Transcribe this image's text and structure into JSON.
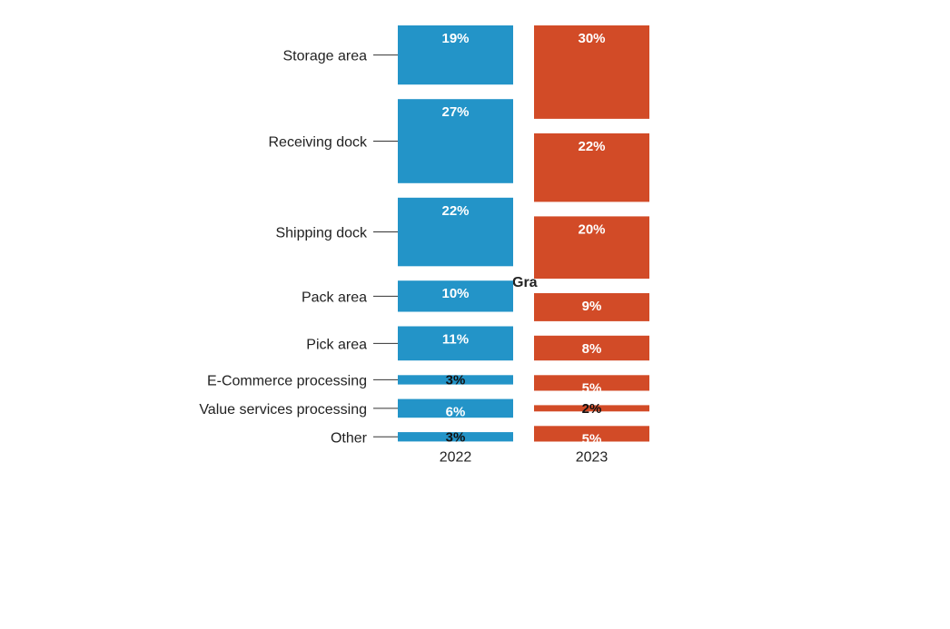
{
  "chart_data": {
    "type": "bar",
    "orientation": "stacked-column",
    "title": "",
    "xlabel": "",
    "ylabel": "",
    "grid": false,
    "legend": "none",
    "categories": [
      "Storage area",
      "Receiving dock",
      "Shipping dock",
      "Pack area",
      "Pick area",
      "E-Commerce processing",
      "Value services processing",
      "Other"
    ],
    "series": [
      {
        "name": "2022",
        "color": "#2394c8",
        "values": [
          19,
          27,
          22,
          10,
          11,
          3,
          6,
          3
        ],
        "labels": [
          "19%",
          "27%",
          "22%",
          "10%",
          "11%",
          "3%",
          "6%",
          "3%"
        ]
      },
      {
        "name": "2023",
        "color": "#d24b27",
        "values": [
          30,
          22,
          20,
          9,
          8,
          5,
          2,
          5
        ],
        "labels": [
          "30%",
          "22%",
          "20%",
          "9%",
          "8%",
          "5%",
          "2%",
          "5%"
        ]
      }
    ],
    "annotation": "Gra"
  }
}
